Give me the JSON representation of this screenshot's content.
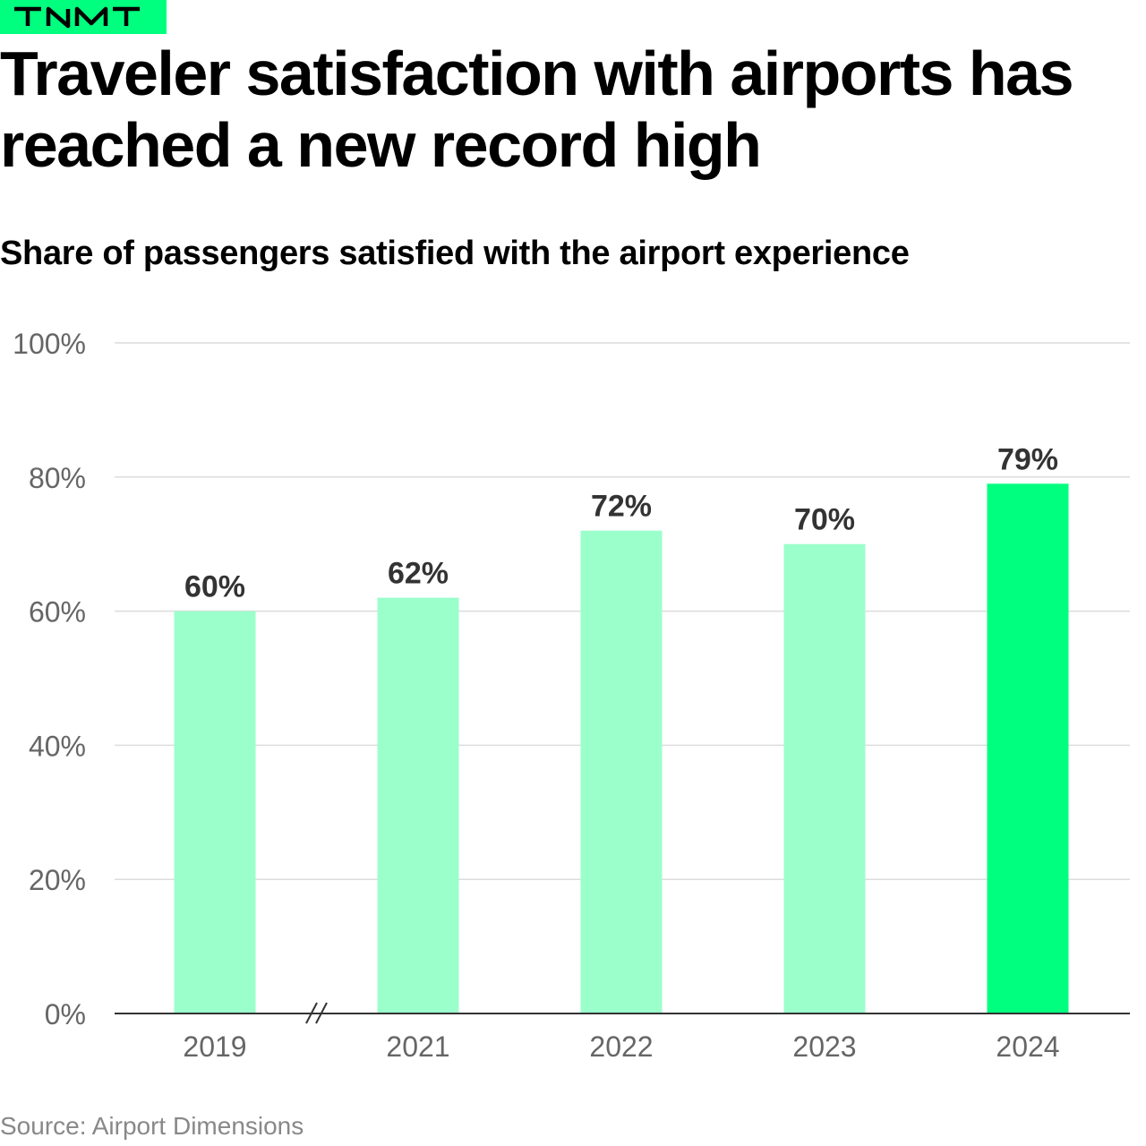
{
  "brand": {
    "logo_text": "TNMT",
    "color": "#00ff7f"
  },
  "title": "Traveler satisfaction with airports has reached a new record high",
  "subtitle": "Share of passengers satisfied with the airport experience",
  "source": "Source: Airport Dimensions",
  "chart_data": {
    "type": "bar",
    "categories": [
      "2019",
      "2021",
      "2022",
      "2023",
      "2024"
    ],
    "values": [
      60,
      62,
      72,
      70,
      79
    ],
    "data_labels": [
      "60%",
      "62%",
      "72%",
      "70%",
      "79%"
    ],
    "ylim": [
      0,
      100
    ],
    "yticks": [
      0,
      20,
      40,
      60,
      80,
      100
    ],
    "ytick_labels": [
      "0%",
      "20%",
      "40%",
      "60%",
      "80%",
      "100%"
    ],
    "grid": true,
    "axis_break_between": [
      "2019",
      "2021"
    ],
    "colors": {
      "default": "#9bffcc",
      "highlight": "#00ff7f",
      "highlight_category": "2024"
    }
  }
}
